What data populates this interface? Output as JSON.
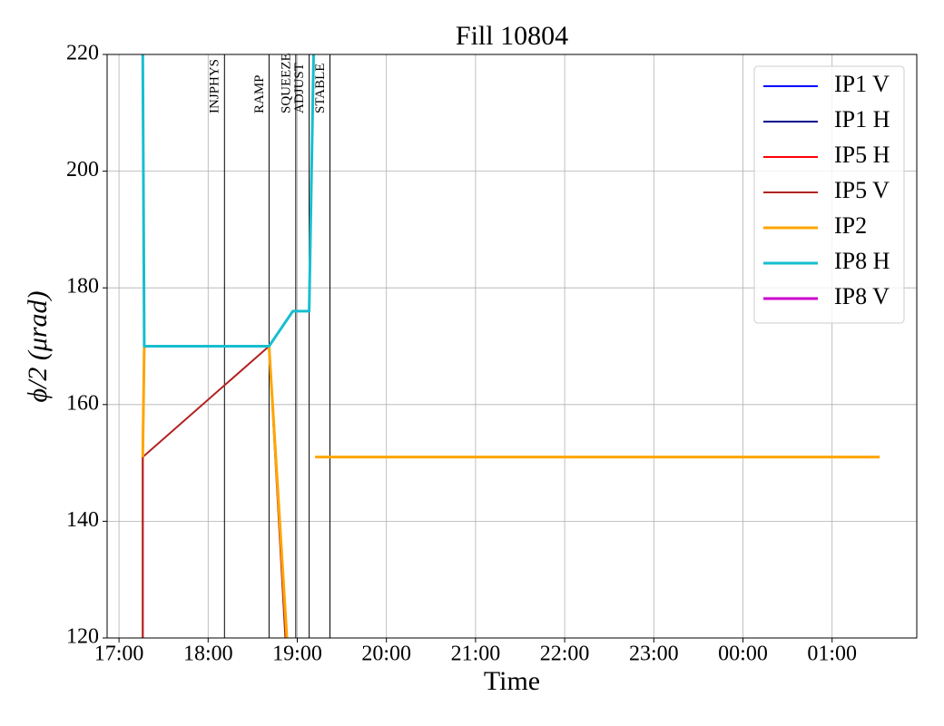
{
  "chart_data": {
    "type": "line",
    "title": "Fill 10804",
    "x_label": "Time",
    "y_label": "ϕ/2 (μrad)",
    "xlim": [
      "16:52",
      "01:57"
    ],
    "xticks": [
      "17:00",
      "18:00",
      "19:00",
      "20:00",
      "21:00",
      "22:00",
      "23:00",
      "00:00",
      "01:00"
    ],
    "ylim": [
      120,
      220
    ],
    "yticks": [
      120,
      140,
      160,
      180,
      200,
      220
    ],
    "grid": true,
    "legend": "upper right",
    "series": [
      {
        "name": "IP1 V",
        "color": "#0000ff",
        "x": [],
        "values": []
      },
      {
        "name": "IP1 H",
        "color": "#00008b",
        "x": [],
        "values": []
      },
      {
        "name": "IP5 H",
        "color": "#ff0000",
        "x": [
          "17:16",
          "17:16",
          "18:41",
          "18:52"
        ],
        "values": [
          120,
          151,
          null,
          120
        ]
      },
      {
        "name": "IP5 V",
        "color": "#b22222",
        "x": [
          "17:16",
          "17:16",
          "18:41",
          "18:52"
        ],
        "values": [
          120,
          151,
          170,
          120
        ]
      },
      {
        "name": "IP2",
        "color": "#ffa500",
        "x": [
          "17:16",
          "17:17",
          "18:41",
          "18:53",
          "19:10",
          "19:12",
          "01:32"
        ],
        "values": [
          151,
          170,
          170,
          120,
          null,
          151,
          151
        ]
      },
      {
        "name": "IP8 H",
        "color": "#17becf",
        "x": [
          "17:16",
          "17:17",
          "18:41",
          "18:57",
          "19:08",
          "19:11"
        ],
        "values": [
          220,
          170,
          170,
          176,
          176,
          220
        ]
      },
      {
        "name": "IP8 V",
        "color": "#cc00cc",
        "x": [],
        "values": []
      }
    ],
    "annotations": [
      {
        "label": "INJPHYS",
        "x": "18:11"
      },
      {
        "label": "RAMP",
        "x": "18:41"
      },
      {
        "label": "SQUEEZE",
        "x": "18:59"
      },
      {
        "label": "ADJUST",
        "x": "19:08"
      },
      {
        "label": "STABLE",
        "x": "19:22"
      }
    ]
  }
}
